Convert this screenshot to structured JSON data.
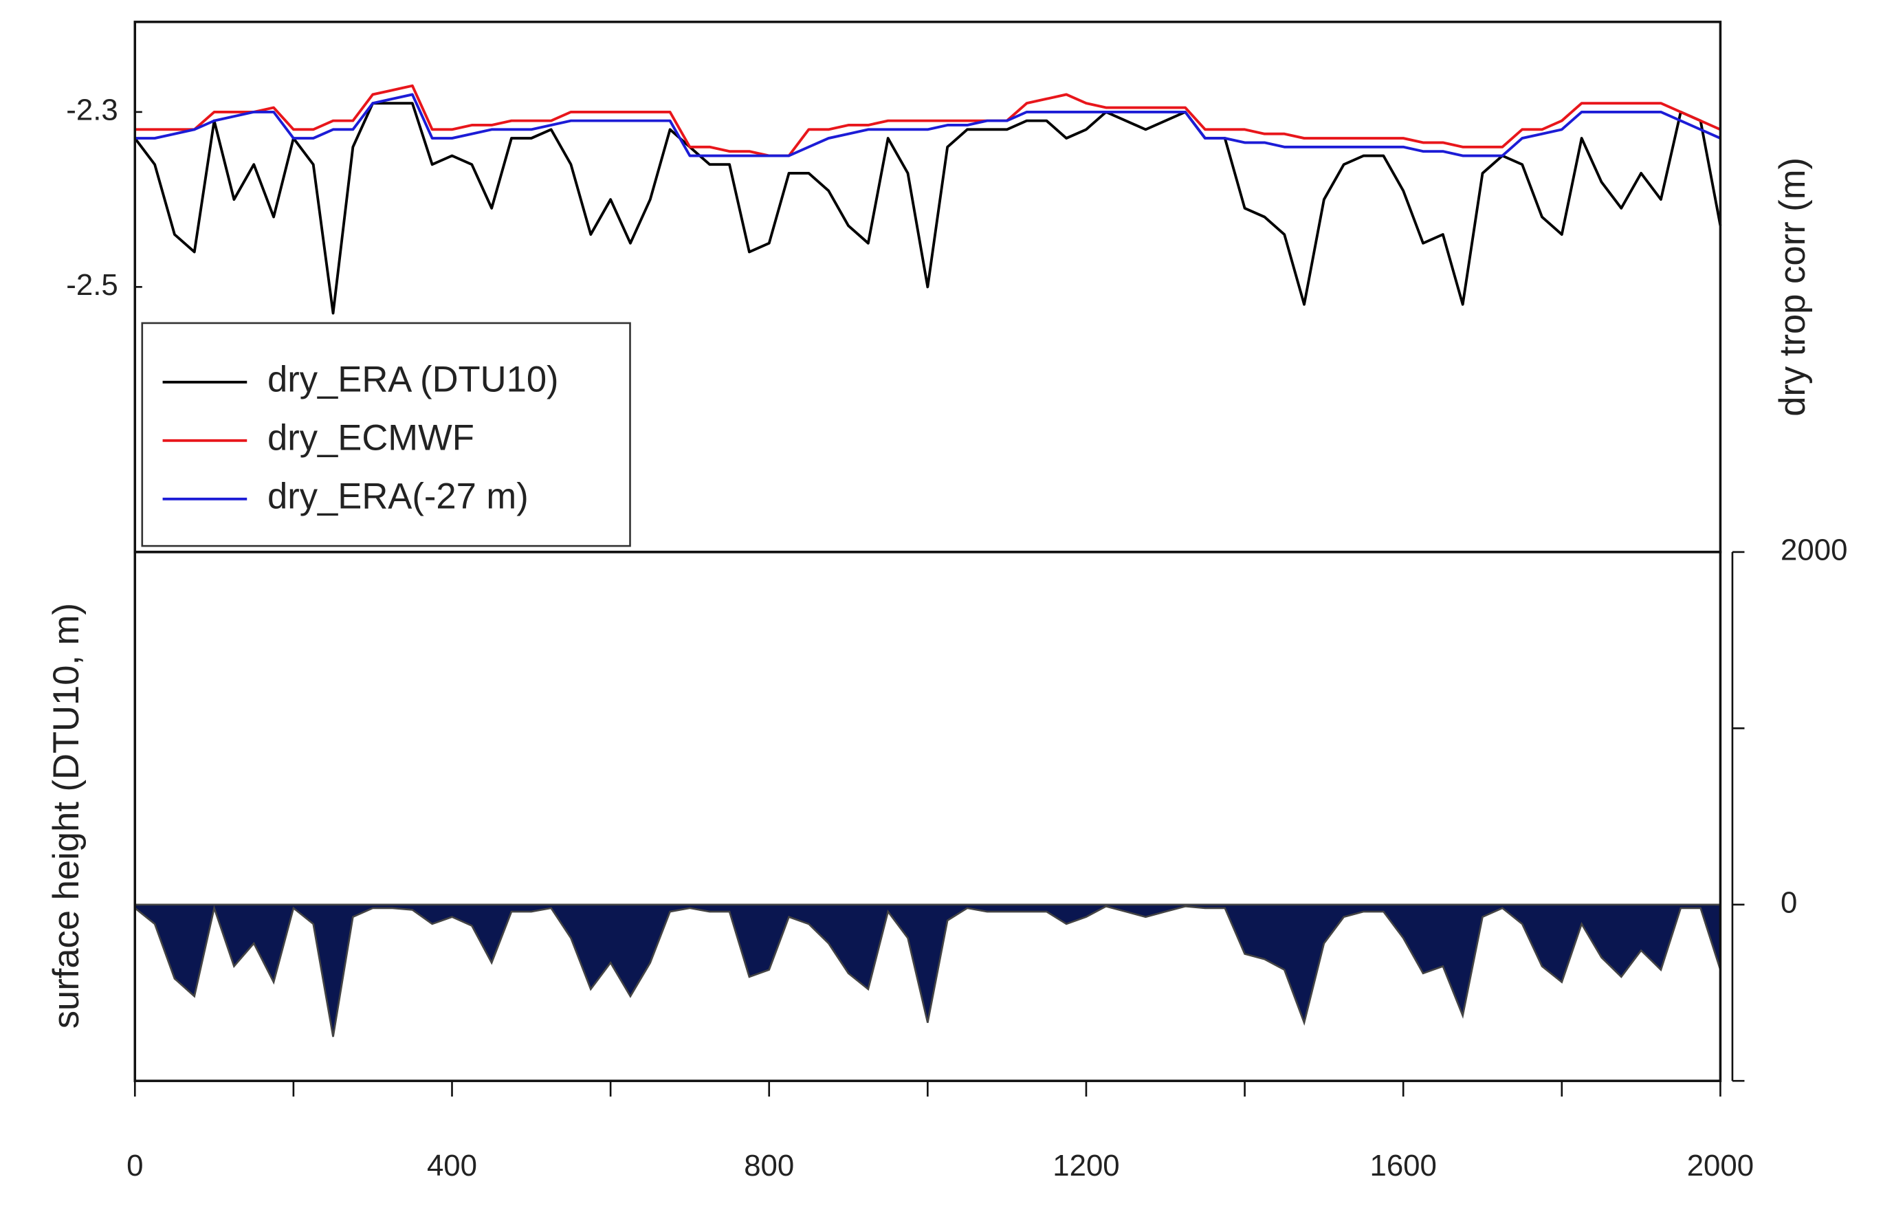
{
  "chart_data": [
    {
      "type": "line",
      "ylabel": "dry trop corr  (m)",
      "x": [
        0,
        25,
        50,
        75,
        100,
        125,
        150,
        175,
        200,
        225,
        250,
        275,
        300,
        325,
        350,
        375,
        400,
        425,
        450,
        475,
        500,
        525,
        550,
        575,
        600,
        625,
        650,
        675,
        700,
        725,
        750,
        775,
        800,
        825,
        850,
        875,
        900,
        925,
        950,
        975,
        1000,
        1025,
        1050,
        1075,
        1100,
        1125,
        1150,
        1175,
        1200,
        1225,
        1250,
        1275,
        1300,
        1325,
        1350,
        1375,
        1400,
        1425,
        1450,
        1475,
        1500,
        1525,
        1550,
        1575,
        1600,
        1625,
        1650,
        1675,
        1700,
        1725,
        1750,
        1775,
        1800,
        1825,
        1850,
        1875,
        1900,
        1925,
        1950,
        1975,
        2000
      ],
      "xlim": [
        0,
        2000
      ],
      "ylim": [
        -2.803,
        -2.197
      ],
      "yticks": [
        -2.3,
        -2.5
      ],
      "legend": "lower left",
      "series": [
        {
          "name": "dry_ERA (DTU10)",
          "color": "#000000",
          "values": [
            -2.33,
            -2.36,
            -2.44,
            -2.46,
            -2.31,
            -2.4,
            -2.36,
            -2.42,
            -2.33,
            -2.36,
            -2.53,
            -2.34,
            -2.29,
            -2.29,
            -2.29,
            -2.36,
            -2.35,
            -2.36,
            -2.41,
            -2.33,
            -2.33,
            -2.32,
            -2.36,
            -2.44,
            -2.4,
            -2.45,
            -2.4,
            -2.32,
            -2.34,
            -2.36,
            -2.36,
            -2.46,
            -2.45,
            -2.37,
            -2.37,
            -2.39,
            -2.43,
            -2.45,
            -2.33,
            -2.37,
            -2.5,
            -2.34,
            -2.32,
            -2.32,
            -2.32,
            -2.31,
            -2.31,
            -2.33,
            -2.32,
            -2.3,
            -2.31,
            -2.32,
            -2.31,
            -2.3,
            -2.33,
            -2.33,
            -2.41,
            -2.42,
            -2.44,
            -2.52,
            -2.4,
            -2.36,
            -2.35,
            -2.35,
            -2.39,
            -2.45,
            -2.44,
            -2.52,
            -2.37,
            -2.35,
            -2.36,
            -2.42,
            -2.44,
            -2.33,
            -2.38,
            -2.41,
            -2.37,
            -2.4,
            -2.3,
            -2.31,
            -2.43
          ]
        },
        {
          "name": "dry_ECMWF",
          "color": "#e8161b",
          "values": [
            -2.32,
            -2.32,
            -2.32,
            -2.32,
            -2.3,
            -2.3,
            -2.3,
            -2.295,
            -2.32,
            -2.32,
            -2.31,
            -2.31,
            -2.28,
            -2.275,
            -2.27,
            -2.32,
            -2.32,
            -2.315,
            -2.315,
            -2.31,
            -2.31,
            -2.31,
            -2.3,
            -2.3,
            -2.3,
            -2.3,
            -2.3,
            -2.3,
            -2.34,
            -2.34,
            -2.345,
            -2.345,
            -2.35,
            -2.35,
            -2.32,
            -2.32,
            -2.315,
            -2.315,
            -2.31,
            -2.31,
            -2.31,
            -2.31,
            -2.31,
            -2.31,
            -2.31,
            -2.29,
            -2.285,
            -2.28,
            -2.29,
            -2.295,
            -2.295,
            -2.295,
            -2.295,
            -2.295,
            -2.32,
            -2.32,
            -2.32,
            -2.325,
            -2.325,
            -2.33,
            -2.33,
            -2.33,
            -2.33,
            -2.33,
            -2.33,
            -2.335,
            -2.335,
            -2.34,
            -2.34,
            -2.34,
            -2.32,
            -2.32,
            -2.31,
            -2.29,
            -2.29,
            -2.29,
            -2.29,
            -2.29,
            -2.3,
            -2.31,
            -2.32
          ]
        },
        {
          "name": "dry_ERA(-27 m)",
          "color": "#1c1cd6",
          "values": [
            -2.33,
            -2.33,
            -2.325,
            -2.32,
            -2.31,
            -2.305,
            -2.3,
            -2.3,
            -2.33,
            -2.33,
            -2.32,
            -2.32,
            -2.29,
            -2.285,
            -2.28,
            -2.33,
            -2.33,
            -2.325,
            -2.32,
            -2.32,
            -2.32,
            -2.315,
            -2.31,
            -2.31,
            -2.31,
            -2.31,
            -2.31,
            -2.31,
            -2.35,
            -2.35,
            -2.35,
            -2.35,
            -2.35,
            -2.35,
            -2.34,
            -2.33,
            -2.325,
            -2.32,
            -2.32,
            -2.32,
            -2.32,
            -2.315,
            -2.315,
            -2.31,
            -2.31,
            -2.3,
            -2.3,
            -2.3,
            -2.3,
            -2.3,
            -2.3,
            -2.3,
            -2.3,
            -2.3,
            -2.33,
            -2.33,
            -2.335,
            -2.335,
            -2.34,
            -2.34,
            -2.34,
            -2.34,
            -2.34,
            -2.34,
            -2.34,
            -2.345,
            -2.345,
            -2.35,
            -2.35,
            -2.35,
            -2.33,
            -2.325,
            -2.32,
            -2.3,
            -2.3,
            -2.3,
            -2.3,
            -2.3,
            -2.31,
            -2.32,
            -2.33
          ]
        }
      ]
    },
    {
      "type": "area",
      "ylabel": "surface height (DTU10, m)",
      "x": [
        0,
        25,
        50,
        75,
        100,
        125,
        150,
        175,
        200,
        225,
        250,
        275,
        300,
        325,
        350,
        375,
        400,
        425,
        450,
        475,
        500,
        525,
        550,
        575,
        600,
        625,
        650,
        675,
        700,
        725,
        750,
        775,
        800,
        825,
        850,
        875,
        900,
        925,
        950,
        975,
        1000,
        1025,
        1050,
        1075,
        1100,
        1125,
        1150,
        1175,
        1200,
        1225,
        1250,
        1275,
        1300,
        1325,
        1350,
        1375,
        1400,
        1425,
        1450,
        1475,
        1500,
        1525,
        1550,
        1575,
        1600,
        1625,
        1650,
        1675,
        1700,
        1725,
        1750,
        1775,
        1800,
        1825,
        1850,
        1875,
        1900,
        1925,
        1950,
        1975,
        2000
      ],
      "values": [
        -20,
        -110,
        -420,
        -520,
        -20,
        -350,
        -220,
        -440,
        -20,
        -110,
        -750,
        -70,
        -20,
        -20,
        -30,
        -110,
        -70,
        -120,
        -330,
        -40,
        -40,
        -20,
        -190,
        -480,
        -330,
        -520,
        -330,
        -40,
        -20,
        -40,
        -40,
        -410,
        -370,
        -70,
        -110,
        -220,
        -390,
        -480,
        -40,
        -190,
        -670,
        -90,
        -20,
        -40,
        -40,
        -40,
        -40,
        -110,
        -70,
        -10,
        -40,
        -70,
        -40,
        -10,
        -20,
        -20,
        -280,
        -310,
        -370,
        -670,
        -220,
        -70,
        -40,
        -40,
        -190,
        -390,
        -350,
        -630,
        -70,
        -20,
        -110,
        -350,
        -440,
        -110,
        -300,
        -410,
        -260,
        -370,
        -20,
        -20,
        -370
      ],
      "color": "#0a1650",
      "xlim": [
        0,
        2000
      ],
      "xticks": [
        0,
        400,
        800,
        1200,
        1600,
        2000
      ],
      "xminor_ticks": [
        200,
        600,
        1000,
        1400,
        1800
      ],
      "ylim": [
        -1000,
        2000
      ],
      "yticks": [
        0,
        2000
      ],
      "yminor_ticks": [
        -1000,
        1000
      ]
    }
  ]
}
